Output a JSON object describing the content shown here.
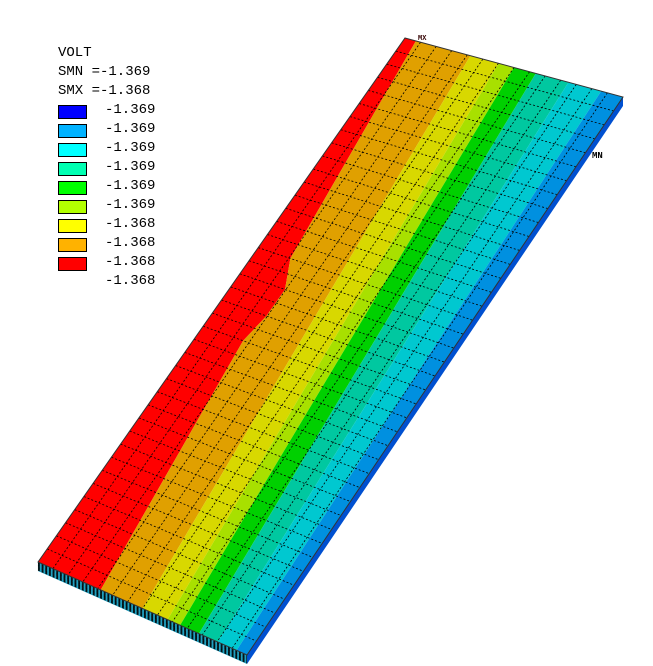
{
  "legend": {
    "title": "VOLT",
    "smn": "SMN =-1.369",
    "smx": "SMX =-1.368",
    "colors": [
      "#0000ff",
      "#00b2ff",
      "#00ffff",
      "#00ffb2",
      "#00ff00",
      "#b2ff00",
      "#ffff00",
      "#ffb200",
      "#ff0000"
    ],
    "values": [
      "-1.369",
      "-1.369",
      "-1.369",
      "-1.369",
      "-1.369",
      "-1.369",
      "-1.368",
      "-1.368",
      "-1.368",
      "-1.368"
    ]
  },
  "markers": {
    "min": "MN",
    "max": "MX"
  },
  "band_colors": [
    "#ff0000",
    "#e0a000",
    "#d8d800",
    "#a8e000",
    "#00d000",
    "#00c8a0",
    "#00c8d0",
    "#0090e0"
  ]
}
